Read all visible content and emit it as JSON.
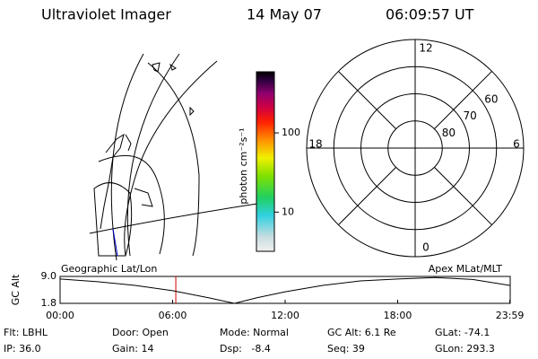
{
  "header": {
    "title": "Ultraviolet Imager",
    "date": "14 May 07",
    "time": "06:09:57 UT"
  },
  "colorbar": {
    "label": "photon cm⁻²s⁻¹",
    "log": true,
    "lim": [
      3.2,
      590
    ],
    "ticks": [
      10,
      100
    ]
  },
  "polar": {
    "mlt_labels": [
      12,
      6,
      0,
      18
    ],
    "lat_lim": [
      90,
      50
    ],
    "lat_rings": [
      80,
      70,
      60
    ]
  },
  "chart_data": {
    "type": "line",
    "left_label": "Geographic Lat/Lon",
    "right_label": "Apex MLat/MLT",
    "ylabel": "GC Alt",
    "x": [
      0,
      2,
      4,
      6,
      8,
      9.3,
      10.5,
      12,
      14,
      16,
      18,
      20,
      22,
      23.98
    ],
    "series": [
      {
        "name": "GC Alt",
        "color": "#000000",
        "values": [
          8.3,
          7.6,
          6.6,
          5.2,
          3.2,
          1.8,
          3.3,
          4.9,
          6.6,
          7.8,
          8.3,
          8.7,
          8.2,
          6.6
        ]
      }
    ],
    "marker_time": 6.17,
    "marker_color": "#cc0000",
    "xlim": [
      0,
      24
    ],
    "xticks": [
      {
        "value": 0,
        "label": "00:00"
      },
      {
        "value": 6,
        "label": "06:00"
      },
      {
        "value": 12,
        "label": "12:00"
      },
      {
        "value": 18,
        "label": "18:00"
      },
      {
        "value": 23.98,
        "label": "23:59"
      }
    ],
    "ylim": [
      1.8,
      9.0
    ],
    "yticks": [
      {
        "value": 9.0,
        "label": "9.0"
      },
      1.8
    ]
  },
  "info": {
    "rows": [
      [
        "Flt: LBHL",
        "Door: Open",
        "Mode: Normal",
        "GC Alt: 6.1 Re",
        "GLat: -74.1"
      ],
      [
        "IP: 36.0",
        "Gain: 14",
        "Dsp:   -8.4",
        "Seq: 39",
        "GLon: 293.3"
      ]
    ]
  }
}
